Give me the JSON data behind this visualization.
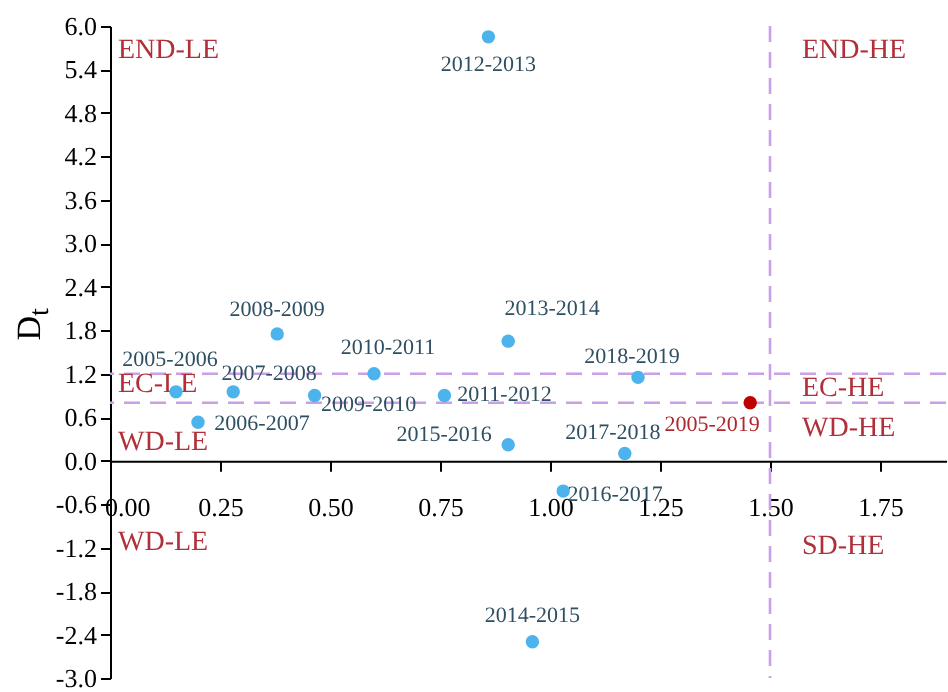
{
  "chart_data": {
    "type": "scatter",
    "ylabel": "D$_{t}$",
    "annotations": [
      "END-LE",
      "END-HE",
      "EC-LE",
      "EC-HE",
      "WD-LE",
      "WD-HE",
      "WD-LE",
      "SD-HE"
    ],
    "series": [
      {
        "name": "2012-2013",
        "color": "#4db3ec",
        "x": [
          0.86
        ],
        "values": [
          5.85
        ]
      },
      {
        "name": "2008-2009",
        "color": "#4db3ec",
        "x": [
          0.38
        ],
        "values": [
          1.75
        ]
      },
      {
        "name": "2005-2006",
        "color": "#4db3ec",
        "x": [
          0.15
        ],
        "values": [
          0.95
        ]
      },
      {
        "name": "2007-2008",
        "color": "#4db3ec",
        "x": [
          0.28
        ],
        "values": [
          0.95
        ]
      },
      {
        "name": "2006-2007",
        "color": "#4db3ec",
        "x": [
          0.2
        ],
        "values": [
          0.53
        ]
      },
      {
        "name": "2009-2010",
        "color": "#4db3ec",
        "x": [
          0.465
        ],
        "values": [
          0.9
        ]
      },
      {
        "name": "2010-2011",
        "color": "#4db3ec",
        "x": [
          0.6
        ],
        "values": [
          1.2
        ]
      },
      {
        "name": "2011-2012",
        "color": "#4db3ec",
        "x": [
          0.76
        ],
        "values": [
          0.9
        ]
      },
      {
        "name": "2013-2014",
        "color": "#4db3ec",
        "x": [
          0.905
        ],
        "values": [
          1.65
        ]
      },
      {
        "name": "2018-2019",
        "color": "#4db3ec",
        "x": [
          1.2
        ],
        "values": [
          1.15
        ]
      },
      {
        "name": "2005-2019",
        "color": "#c00000",
        "x": [
          1.455
        ],
        "values": [
          0.8
        ]
      },
      {
        "name": "2015-2016",
        "color": "#4db3ec",
        "x": [
          0.905
        ],
        "values": [
          0.22
        ]
      },
      {
        "name": "2017-2018",
        "color": "#4db3ec",
        "x": [
          1.17
        ],
        "values": [
          0.1
        ]
      },
      {
        "name": "2016-2017",
        "color": "#4db3ec",
        "x": [
          1.03
        ],
        "values": [
          -0.42
        ]
      },
      {
        "name": "2014-2015",
        "color": "#4db3ec",
        "x": [
          0.96
        ],
        "values": [
          -2.5
        ]
      }
    ],
    "marker": "circle",
    "xlim": [
      0,
      1.9
    ],
    "xticks": [
      {
        "value": 0,
        "label": "0.00"
      },
      {
        "value": 0.25,
        "label": "0.25"
      },
      {
        "value": 0.5,
        "label": "0.50"
      },
      {
        "value": 0.75,
        "label": "0.75"
      },
      {
        "value": 1,
        "label": "1.00"
      },
      {
        "value": 1.25,
        "label": "1.25"
      },
      {
        "value": 1.5,
        "label": "1.50"
      },
      {
        "value": 1.75,
        "label": "1.75"
      }
    ],
    "ylim": [
      -3,
      6
    ],
    "yticks": [
      {
        "value": -3,
        "label": "-3.0"
      },
      {
        "value": -2.4,
        "label": "-2.4"
      },
      {
        "value": -1.8,
        "label": "-1.8"
      },
      {
        "value": -1.2,
        "label": "-1.2"
      },
      {
        "value": -0.6,
        "label": "-0.6"
      },
      {
        "value": 0,
        "label": "0.0"
      },
      {
        "value": 0.6,
        "label": "0.6"
      },
      {
        "value": 1.2,
        "label": "1.2"
      },
      {
        "value": 1.8,
        "label": "1.8"
      },
      {
        "value": 2.4,
        "label": "2.4"
      },
      {
        "value": 3,
        "label": "3.0"
      },
      {
        "value": 3.6,
        "label": "3.6"
      },
      {
        "value": 4.2,
        "label": "4.2"
      },
      {
        "value": 4.8,
        "label": "4.8"
      },
      {
        "value": 5.4,
        "label": "5.4"
      },
      {
        "value": 6,
        "label": "6.0"
      }
    ],
    "ref_lines": [
      {
        "axis": "y",
        "value": 1.2,
        "color": "#c9a0e6",
        "line_style": "dashed"
      },
      {
        "axis": "y",
        "value": 0.8,
        "color": "#c9a0e6",
        "line_style": "dashed"
      },
      {
        "axis": "x",
        "value": 1.5,
        "color": "#c9a0e6",
        "line_style": "dashed"
      }
    ],
    "grid": false
  }
}
